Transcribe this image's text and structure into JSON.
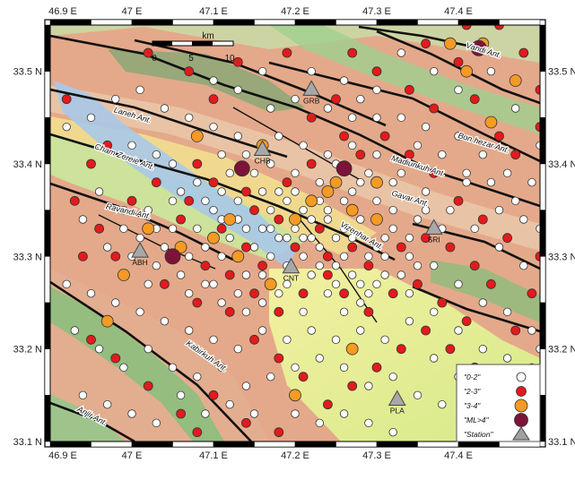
{
  "map": {
    "lon_range": [
      46.9,
      47.5
    ],
    "lat_range": [
      33.1,
      33.55
    ],
    "x_ticks": [
      {
        "value": 46.9,
        "label": "46.9 E"
      },
      {
        "value": 47.0,
        "label": "47 E"
      },
      {
        "value": 47.1,
        "label": "47.1 E"
      },
      {
        "value": 47.2,
        "label": "47.2 E"
      },
      {
        "value": 47.3,
        "label": "47.3 E"
      },
      {
        "value": 47.4,
        "label": "47.4 E"
      }
    ],
    "y_ticks": [
      {
        "value": 33.5,
        "label": "33.5 N"
      },
      {
        "value": 33.4,
        "label": "33.4 N"
      },
      {
        "value": 33.3,
        "label": "33.3 N"
      },
      {
        "value": 33.2,
        "label": "33.2 N"
      },
      {
        "value": 33.1,
        "label": "33.1 N"
      }
    ],
    "scale_bar": {
      "unit": "km",
      "labels": [
        "0",
        "5",
        "10"
      ]
    }
  },
  "anticlines": [
    {
      "name": "Laneh Ant.",
      "lon": 47.0,
      "lat": 33.45,
      "rotate": 17
    },
    {
      "name": "Cham Zereie Ant.",
      "lon": 46.99,
      "lat": 33.405,
      "rotate": 20
    },
    {
      "name": "Ravandi Ant.",
      "lon": 46.995,
      "lat": 33.346,
      "rotate": 13
    },
    {
      "name": "Vandi Ant.",
      "lon": 47.43,
      "lat": 33.52,
      "rotate": 17
    },
    {
      "name": "Bon hezar Ant.",
      "lon": 47.43,
      "lat": 33.42,
      "rotate": 17
    },
    {
      "name": "Madiunkuh Ant.",
      "lon": 47.35,
      "lat": 33.395,
      "rotate": 17
    },
    {
      "name": "Gavar Ant.",
      "lon": 47.34,
      "lat": 33.36,
      "rotate": 17
    },
    {
      "name": "Vizenhar Ant.",
      "lon": 47.28,
      "lat": 33.32,
      "rotate": 30
    },
    {
      "name": "Kabirkuh Ant.",
      "lon": 47.09,
      "lat": 33.19,
      "rotate": 35
    },
    {
      "name": "Anjir Ant.",
      "lon": 46.95,
      "lat": 33.125,
      "rotate": 28
    }
  ],
  "stations": [
    {
      "code": "GRB",
      "lon": 47.22,
      "lat": 33.48
    },
    {
      "code": "CHB",
      "lon": 47.16,
      "lat": 33.415
    },
    {
      "code": "SRI",
      "lon": 47.37,
      "lat": 33.33
    },
    {
      "code": "ABH",
      "lon": 47.01,
      "lat": 33.305
    },
    {
      "code": "CNT",
      "lon": 47.195,
      "lat": 33.288
    },
    {
      "code": "PLA",
      "lon": 47.325,
      "lat": 33.145
    }
  ],
  "legend": [
    {
      "label": "\"0-2\"",
      "symbol": "circle",
      "color": "#ffffff",
      "radius": 5
    },
    {
      "label": "\"2-3\"",
      "symbol": "circle",
      "color": "#e41a1c",
      "radius": 5.5
    },
    {
      "label": "\"3-4\"",
      "symbol": "circle",
      "color": "#f59a23",
      "radius": 7
    },
    {
      "label": "\"ML>4\"",
      "symbol": "circle",
      "color": "#7d1338",
      "radius": 9
    },
    {
      "label": "\"Station\"",
      "symbol": "triangle",
      "color": "#a0a0a0",
      "radius": 9
    }
  ],
  "events": {
    "large": [
      [
        47.135,
        33.395
      ],
      [
        47.26,
        33.395
      ],
      [
        47.05,
        33.3
      ],
      [
        47.425,
        33.525
      ]
    ],
    "medium": [
      [
        47.16,
        33.42
      ],
      [
        47.08,
        33.43
      ],
      [
        47.2,
        33.34
      ],
      [
        47.25,
        33.38
      ],
      [
        47.27,
        33.35
      ],
      [
        47.3,
        33.34
      ],
      [
        47.1,
        33.32
      ],
      [
        47.02,
        33.33
      ],
      [
        47.06,
        33.31
      ],
      [
        47.13,
        33.3
      ],
      [
        47.17,
        33.27
      ],
      [
        46.99,
        33.28
      ],
      [
        47.27,
        33.2
      ],
      [
        47.41,
        33.5
      ],
      [
        47.47,
        33.49
      ],
      [
        47.39,
        33.53
      ],
      [
        47.44,
        33.445
      ],
      [
        47.3,
        33.38
      ],
      [
        47.22,
        33.36
      ],
      [
        47.2,
        33.15
      ],
      [
        47.43,
        33.53
      ],
      [
        46.97,
        33.23
      ],
      [
        47.24,
        33.37
      ],
      [
        47.12,
        33.34
      ]
    ],
    "strong": [
      [
        47.02,
        33.52
      ],
      [
        47.07,
        33.5
      ],
      [
        47.13,
        33.51
      ],
      [
        47.1,
        33.47
      ],
      [
        47.19,
        33.52
      ],
      [
        47.27,
        33.52
      ],
      [
        47.3,
        33.5
      ],
      [
        47.34,
        33.48
      ],
      [
        47.37,
        33.46
      ],
      [
        47.42,
        33.47
      ],
      [
        47.45,
        33.43
      ],
      [
        47.47,
        33.41
      ],
      [
        47.5,
        33.44
      ],
      [
        46.92,
        33.47
      ],
      [
        46.97,
        33.42
      ],
      [
        47.03,
        33.38
      ],
      [
        47.07,
        33.36
      ],
      [
        47.11,
        33.33
      ],
      [
        47.14,
        33.31
      ],
      [
        47.16,
        33.29
      ],
      [
        47.2,
        33.31
      ],
      [
        47.23,
        33.33
      ],
      [
        47.27,
        33.31
      ],
      [
        47.29,
        33.29
      ],
      [
        47.33,
        33.31
      ],
      [
        47.35,
        33.27
      ],
      [
        47.38,
        33.25
      ],
      [
        47.41,
        33.23
      ],
      [
        47.44,
        33.27
      ],
      [
        47.47,
        33.22
      ],
      [
        47.49,
        33.26
      ],
      [
        47.5,
        33.3
      ],
      [
        47.46,
        33.32
      ],
      [
        47.43,
        33.34
      ],
      [
        47.4,
        33.36
      ],
      [
        47.37,
        33.39
      ],
      [
        47.34,
        33.41
      ],
      [
        47.31,
        33.43
      ],
      [
        47.28,
        33.41
      ],
      [
        47.26,
        33.43
      ],
      [
        47.22,
        33.4
      ],
      [
        47.19,
        33.38
      ],
      [
        47.14,
        33.37
      ],
      [
        47.1,
        33.38
      ],
      [
        47.08,
        33.4
      ],
      [
        46.95,
        33.4
      ],
      [
        46.93,
        33.36
      ],
      [
        46.96,
        33.33
      ],
      [
        46.98,
        33.3
      ],
      [
        47.04,
        33.27
      ],
      [
        47.08,
        33.25
      ],
      [
        47.12,
        33.24
      ],
      [
        47.15,
        33.21
      ],
      [
        47.18,
        33.19
      ],
      [
        47.21,
        33.17
      ],
      [
        47.24,
        33.14
      ],
      [
        47.27,
        33.16
      ],
      [
        47.3,
        33.18
      ],
      [
        47.33,
        33.2
      ],
      [
        47.36,
        33.22
      ],
      [
        47.39,
        33.2
      ],
      [
        47.42,
        33.18
      ],
      [
        47.45,
        33.16
      ],
      [
        47.48,
        33.14
      ],
      [
        47.1,
        33.15
      ],
      [
        47.06,
        33.13
      ],
      [
        47.02,
        33.16
      ],
      [
        46.98,
        33.19
      ],
      [
        46.95,
        33.21
      ],
      [
        47.14,
        33.12
      ],
      [
        47.18,
        33.11
      ],
      [
        47.08,
        33.11
      ],
      [
        47.24,
        33.28
      ],
      [
        47.21,
        33.26
      ],
      [
        47.18,
        33.24
      ],
      [
        47.15,
        33.26
      ],
      [
        47.12,
        33.28
      ],
      [
        47.26,
        33.26
      ],
      [
        47.29,
        33.24
      ],
      [
        47.32,
        33.26
      ],
      [
        47.36,
        33.32
      ],
      [
        47.39,
        33.31
      ],
      [
        47.42,
        33.29
      ],
      [
        47.18,
        33.34
      ],
      [
        47.15,
        33.35
      ],
      [
        47.24,
        33.3
      ],
      [
        47.06,
        33.34
      ],
      [
        47.09,
        33.29
      ],
      [
        47.22,
        33.45
      ],
      [
        47.25,
        33.47
      ],
      [
        47.41,
        33.55
      ],
      [
        47.45,
        33.55
      ],
      [
        47.48,
        33.52
      ],
      [
        47.5,
        33.48
      ],
      [
        47.36,
        33.53
      ],
      [
        47.4,
        33.51
      ],
      [
        46.94,
        33.3
      ],
      [
        47.0,
        33.36
      ]
    ],
    "minor": [
      [
        47.16,
        33.5
      ],
      [
        47.2,
        33.47
      ],
      [
        47.24,
        33.46
      ],
      [
        47.28,
        33.47
      ],
      [
        47.33,
        33.45
      ],
      [
        47.36,
        33.44
      ],
      [
        47.4,
        33.43
      ],
      [
        47.43,
        33.41
      ],
      [
        47.46,
        33.39
      ],
      [
        47.49,
        33.38
      ],
      [
        47.1,
        33.44
      ],
      [
        47.13,
        33.43
      ],
      [
        47.18,
        33.43
      ],
      [
        47.21,
        33.42
      ],
      [
        47.24,
        33.41
      ],
      [
        47.27,
        33.42
      ],
      [
        47.3,
        33.41
      ],
      [
        47.33,
        33.39
      ],
      [
        47.36,
        33.37
      ],
      [
        47.39,
        33.35
      ],
      [
        47.42,
        33.33
      ],
      [
        47.45,
        33.35
      ],
      [
        47.48,
        33.34
      ],
      [
        47.0,
        33.42
      ],
      [
        47.03,
        33.41
      ],
      [
        47.05,
        33.4
      ],
      [
        47.08,
        33.38
      ],
      [
        47.11,
        33.37
      ],
      [
        47.13,
        33.36
      ],
      [
        47.16,
        33.37
      ],
      [
        47.19,
        33.36
      ],
      [
        47.21,
        33.35
      ],
      [
        47.24,
        33.35
      ],
      [
        47.27,
        33.37
      ],
      [
        47.3,
        33.36
      ],
      [
        47.32,
        33.35
      ],
      [
        47.35,
        33.34
      ],
      [
        47.38,
        33.33
      ],
      [
        46.96,
        33.37
      ],
      [
        46.99,
        33.35
      ],
      [
        47.02,
        33.35
      ],
      [
        47.05,
        33.33
      ],
      [
        47.08,
        33.33
      ],
      [
        47.1,
        33.35
      ],
      [
        47.13,
        33.34
      ],
      [
        47.16,
        33.33
      ],
      [
        47.18,
        33.32
      ],
      [
        47.21,
        33.32
      ],
      [
        47.23,
        33.31
      ],
      [
        47.26,
        33.33
      ],
      [
        47.28,
        33.34
      ],
      [
        47.31,
        33.32
      ],
      [
        47.34,
        33.3
      ],
      [
        47.37,
        33.29
      ],
      [
        47.4,
        33.27
      ],
      [
        47.43,
        33.25
      ],
      [
        47.46,
        33.24
      ],
      [
        47.49,
        33.22
      ],
      [
        46.94,
        33.34
      ],
      [
        46.97,
        33.31
      ],
      [
        47.0,
        33.3
      ],
      [
        47.03,
        33.29
      ],
      [
        47.06,
        33.28
      ],
      [
        47.09,
        33.27
      ],
      [
        47.11,
        33.3
      ],
      [
        47.14,
        33.28
      ],
      [
        47.17,
        33.3
      ],
      [
        47.19,
        33.29
      ],
      [
        47.22,
        33.28
      ],
      [
        47.25,
        33.29
      ],
      [
        47.28,
        33.27
      ],
      [
        47.31,
        33.28
      ],
      [
        47.34,
        33.26
      ],
      [
        47.37,
        33.24
      ],
      [
        47.4,
        33.22
      ],
      [
        47.43,
        33.2
      ],
      [
        47.46,
        33.19
      ],
      [
        47.49,
        33.18
      ],
      [
        46.92,
        33.27
      ],
      [
        46.95,
        33.26
      ],
      [
        46.98,
        33.25
      ],
      [
        47.01,
        33.24
      ],
      [
        47.04,
        33.23
      ],
      [
        47.07,
        33.22
      ],
      [
        47.1,
        33.21
      ],
      [
        47.13,
        33.2
      ],
      [
        47.16,
        33.22
      ],
      [
        47.19,
        33.21
      ],
      [
        47.22,
        33.22
      ],
      [
        47.25,
        33.21
      ],
      [
        47.28,
        33.22
      ],
      [
        47.31,
        33.21
      ],
      [
        47.34,
        33.23
      ],
      [
        47.37,
        33.19
      ],
      [
        47.4,
        33.17
      ],
      [
        47.43,
        33.15
      ],
      [
        47.46,
        33.13
      ],
      [
        47.49,
        33.11
      ],
      [
        46.93,
        33.22
      ],
      [
        46.96,
        33.2
      ],
      [
        46.99,
        33.18
      ],
      [
        47.02,
        33.2
      ],
      [
        47.05,
        33.18
      ],
      [
        47.08,
        33.17
      ],
      [
        47.11,
        33.18
      ],
      [
        47.14,
        33.16
      ],
      [
        47.17,
        33.17
      ],
      [
        47.2,
        33.18
      ],
      [
        47.23,
        33.19
      ],
      [
        47.26,
        33.18
      ],
      [
        47.29,
        33.16
      ],
      [
        47.32,
        33.17
      ],
      [
        47.35,
        33.15
      ],
      [
        47.38,
        33.14
      ],
      [
        47.41,
        33.12
      ],
      [
        46.94,
        33.15
      ],
      [
        46.97,
        33.14
      ],
      [
        47.0,
        33.13
      ],
      [
        47.03,
        33.12
      ],
      [
        47.06,
        33.15
      ],
      [
        47.09,
        33.13
      ],
      [
        47.12,
        33.14
      ],
      [
        47.15,
        33.13
      ],
      [
        47.2,
        33.13
      ],
      [
        47.23,
        33.12
      ],
      [
        47.26,
        33.13
      ],
      [
        47.29,
        33.12
      ],
      [
        47.32,
        33.11
      ],
      [
        46.92,
        33.44
      ],
      [
        46.95,
        33.45
      ],
      [
        46.98,
        33.47
      ],
      [
        47.01,
        33.48
      ],
      [
        47.04,
        33.46
      ],
      [
        47.07,
        33.45
      ],
      [
        47.1,
        33.49
      ],
      [
        47.13,
        33.48
      ],
      [
        47.17,
        33.46
      ],
      [
        47.22,
        33.5
      ],
      [
        47.26,
        33.49
      ],
      [
        47.3,
        33.48
      ],
      [
        47.33,
        33.52
      ],
      [
        47.37,
        33.5
      ],
      [
        47.4,
        33.48
      ],
      [
        47.44,
        33.5
      ],
      [
        47.47,
        33.46
      ],
      [
        47.5,
        33.42
      ],
      [
        47.48,
        33.29
      ],
      [
        47.5,
        33.33
      ],
      [
        47.5,
        33.2
      ],
      [
        47.45,
        33.31
      ],
      [
        47.41,
        33.38
      ],
      [
        47.44,
        33.38
      ],
      [
        47.47,
        33.36
      ],
      [
        47.2,
        33.39
      ],
      [
        47.23,
        33.38
      ],
      [
        47.25,
        33.4
      ],
      [
        47.29,
        33.39
      ],
      [
        47.32,
        33.38
      ],
      [
        47.17,
        33.4
      ],
      [
        47.14,
        33.41
      ],
      [
        47.11,
        33.41
      ],
      [
        47.12,
        33.39
      ],
      [
        47.15,
        33.39
      ],
      [
        47.18,
        33.37
      ],
      [
        47.2,
        33.33
      ],
      [
        47.22,
        33.34
      ],
      [
        47.25,
        33.32
      ],
      [
        47.27,
        33.32
      ],
      [
        47.29,
        33.3
      ],
      [
        47.31,
        33.3
      ],
      [
        47.23,
        33.36
      ],
      [
        47.26,
        33.36
      ],
      [
        47.28,
        33.38
      ],
      [
        47.3,
        33.31
      ],
      [
        47.32,
        33.33
      ],
      [
        47.34,
        33.32
      ],
      [
        47.36,
        33.35
      ],
      [
        47.19,
        33.27
      ],
      [
        47.21,
        33.3
      ],
      [
        47.24,
        33.26
      ],
      [
        47.26,
        33.24
      ],
      [
        47.28,
        33.25
      ],
      [
        47.3,
        33.27
      ],
      [
        47.33,
        33.28
      ],
      [
        47.35,
        33.29
      ],
      [
        47.16,
        33.25
      ],
      [
        47.14,
        33.24
      ],
      [
        47.11,
        33.25
      ],
      [
        47.09,
        33.31
      ],
      [
        47.07,
        33.3
      ],
      [
        47.05,
        33.36
      ],
      [
        47.03,
        33.33
      ],
      [
        47.01,
        33.32
      ],
      [
        46.99,
        33.33
      ],
      [
        47.12,
        33.32
      ],
      [
        47.15,
        33.31
      ],
      [
        47.17,
        33.35
      ],
      [
        47.2,
        33.37
      ],
      [
        47.22,
        33.32
      ],
      [
        47.24,
        33.34
      ],
      [
        47.26,
        33.3
      ],
      [
        47.27,
        33.28
      ],
      [
        47.29,
        33.26
      ],
      [
        47.25,
        33.27
      ],
      [
        47.23,
        33.29
      ],
      [
        47.21,
        33.24
      ],
      [
        47.18,
        33.26
      ],
      [
        47.16,
        33.28
      ],
      [
        47.19,
        33.32
      ],
      [
        47.17,
        33.33
      ],
      [
        47.14,
        33.33
      ],
      [
        47.11,
        33.34
      ],
      [
        47.09,
        33.36
      ],
      [
        47.06,
        33.37
      ],
      [
        47.04,
        33.31
      ],
      [
        47.02,
        33.27
      ],
      [
        47.07,
        33.26
      ],
      [
        47.1,
        33.27
      ],
      [
        47.13,
        33.26
      ],
      [
        47.27,
        33.45
      ],
      [
        47.3,
        33.45
      ],
      [
        47.35,
        33.42
      ],
      [
        47.38,
        33.41
      ],
      [
        47.41,
        33.39
      ]
    ]
  }
}
